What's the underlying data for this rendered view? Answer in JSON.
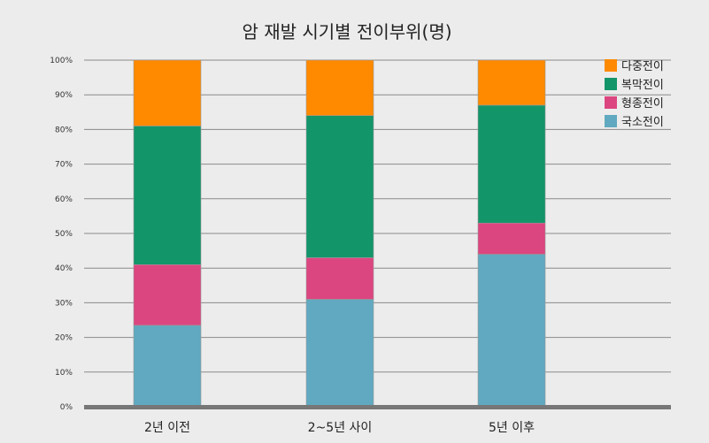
{
  "chart_data": {
    "type": "bar",
    "stacked": true,
    "title": "암 재발 시기별 전이부위(명)",
    "xlabel": "",
    "ylabel": "",
    "ylim": [
      0,
      100
    ],
    "y_ticks": [
      "0%",
      "10%",
      "20%",
      "30%",
      "40%",
      "50%",
      "60%",
      "70%",
      "80%",
      "90%",
      "100%"
    ],
    "categories": [
      "2년 이전",
      "2~5년 사이",
      "5년 이후"
    ],
    "series": [
      {
        "name": "국소전이",
        "color": "#60a9c0",
        "values": [
          23.5,
          31,
          44
        ]
      },
      {
        "name": "형종전이",
        "color": "#dc4680",
        "values": [
          17.5,
          12,
          9
        ]
      },
      {
        "name": "복막전이",
        "color": "#13956a",
        "values": [
          40,
          41,
          34
        ]
      },
      {
        "name": "다중전이",
        "color": "#ff8a00",
        "values": [
          19,
          16,
          13
        ]
      }
    ],
    "legend": [
      "다중전이",
      "복막전이",
      "형종전이",
      "국소전이"
    ],
    "legend_position": "top-right",
    "grid": true
  }
}
